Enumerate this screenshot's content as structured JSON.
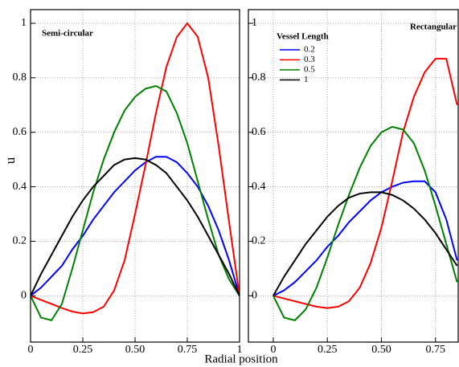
{
  "chart_data": [
    {
      "type": "line",
      "ylabel": "u",
      "xlabel": "Radial position",
      "annotation": "Semi-circular",
      "x": [
        0,
        0.05,
        0.1,
        0.15,
        0.2,
        0.25,
        0.3,
        0.35,
        0.4,
        0.45,
        0.5,
        0.55,
        0.6,
        0.65,
        0.7,
        0.75,
        0.8,
        0.85,
        0.9,
        0.95,
        1
      ],
      "xlim": [
        0,
        1
      ],
      "ylim": [
        -0.17,
        1.05
      ],
      "xticks": [
        0,
        0.25,
        {
          "value": 0.5,
          "label": "0.50"
        },
        0.75,
        1
      ],
      "yticks": [
        0,
        0.2,
        0.4,
        0.6,
        0.8,
        1
      ],
      "grid": true,
      "series": [
        {
          "name": "0.2",
          "color": "#0000ff",
          "values": [
            0,
            0.03,
            0.07,
            0.11,
            0.17,
            0.22,
            0.28,
            0.33,
            0.38,
            0.42,
            0.46,
            0.49,
            0.51,
            0.51,
            0.49,
            0.45,
            0.4,
            0.33,
            0.24,
            0.13,
            0
          ]
        },
        {
          "name": "0.3",
          "color": "#ff0000",
          "values": [
            0,
            -0.015,
            -0.03,
            -0.045,
            -0.058,
            -0.065,
            -0.06,
            -0.04,
            0.02,
            0.13,
            0.3,
            0.48,
            0.67,
            0.84,
            0.95,
            1.0,
            0.95,
            0.8,
            0.55,
            0.27,
            0
          ]
        },
        {
          "name": "0.5",
          "color": "#008000",
          "values": [
            0,
            -0.08,
            -0.09,
            -0.03,
            0.1,
            0.24,
            0.38,
            0.5,
            0.6,
            0.68,
            0.73,
            0.76,
            0.77,
            0.75,
            0.67,
            0.56,
            0.42,
            0.28,
            0.15,
            0.06,
            0
          ]
        },
        {
          "name": "1",
          "color": "#000000",
          "values": [
            0,
            0.08,
            0.15,
            0.22,
            0.29,
            0.35,
            0.4,
            0.44,
            0.48,
            0.5,
            0.505,
            0.5,
            0.48,
            0.45,
            0.4,
            0.35,
            0.29,
            0.22,
            0.15,
            0.08,
            0
          ]
        }
      ]
    },
    {
      "type": "line",
      "annotation": "Rectangular",
      "legend_title": "Vessel Length",
      "legend": "upper left",
      "x": [
        0,
        0.05,
        0.1,
        0.15,
        0.2,
        0.25,
        0.3,
        0.35,
        0.4,
        0.45,
        0.5,
        0.55,
        0.6,
        0.65,
        0.7,
        0.75,
        0.8,
        0.85
      ],
      "xlim": [
        -0.115,
        0.855
      ],
      "ylim": [
        -0.17,
        1.05
      ],
      "xticks": [
        0,
        0.25,
        {
          "value": 0.5,
          "label": "0.50"
        },
        0.75
      ],
      "yticks": [
        0,
        0.2,
        0.4,
        0.6,
        0.8,
        1
      ],
      "grid": true,
      "series": [
        {
          "name": "0.2",
          "color": "#0000ff",
          "values": [
            0,
            0.02,
            0.05,
            0.09,
            0.13,
            0.18,
            0.22,
            0.27,
            0.31,
            0.35,
            0.38,
            0.4,
            0.415,
            0.42,
            0.42,
            0.38,
            0.28,
            0.13
          ]
        },
        {
          "name": "0.3",
          "color": "#ff0000",
          "values": [
            0,
            -0.01,
            -0.02,
            -0.03,
            -0.04,
            -0.045,
            -0.04,
            -0.02,
            0.03,
            0.12,
            0.25,
            0.42,
            0.6,
            0.73,
            0.82,
            0.87,
            0.87,
            0.7
          ]
        },
        {
          "name": "0.5",
          "color": "#008000",
          "values": [
            0,
            -0.08,
            -0.09,
            -0.05,
            0.03,
            0.14,
            0.26,
            0.37,
            0.47,
            0.55,
            0.6,
            0.62,
            0.61,
            0.56,
            0.46,
            0.33,
            0.19,
            0.05
          ]
        },
        {
          "name": "1",
          "color": "#000000",
          "values": [
            0,
            0.07,
            0.13,
            0.19,
            0.24,
            0.29,
            0.33,
            0.36,
            0.375,
            0.38,
            0.38,
            0.37,
            0.35,
            0.32,
            0.28,
            0.23,
            0.17,
            0.11
          ]
        }
      ]
    }
  ]
}
